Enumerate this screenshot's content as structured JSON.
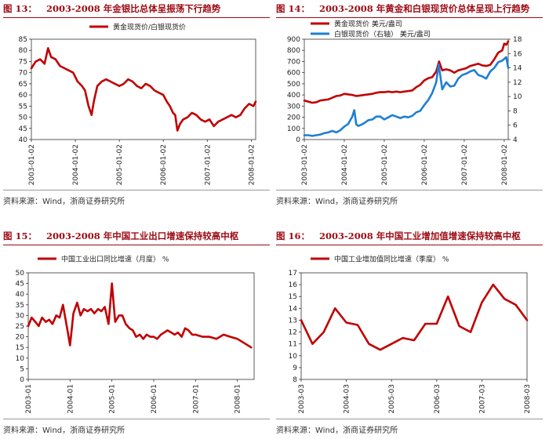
{
  "colors": {
    "red": "#c00000",
    "blue": "#1f7fd4",
    "title": "#9c0a13"
  },
  "source_text": "资料来源：Wind，浙商证券研究所",
  "panels": [
    {
      "num": "图 13：",
      "title": "2003-2008 年金银比总体呈振荡下行趋势"
    },
    {
      "num": "图 14：",
      "title": "2003-2008 年黄金和白银现货价总体呈现上行趋势"
    },
    {
      "num": "图 15：",
      "title": "2003-2008 年中国工业出口增速保持较高中枢"
    },
    {
      "num": "图 16：",
      "title": "2003-2008 年中国工业增加值增速保持较高中枢"
    }
  ],
  "chart_data": [
    {
      "type": "line",
      "title": "",
      "x_ticks": [
        "2003-01-02",
        "2004-01-02",
        "2005-01-02",
        "2006-01-02",
        "2007-01-02",
        "2008-01-02"
      ],
      "ylim": [
        40,
        85
      ],
      "y_ticks": [
        40,
        45,
        50,
        55,
        60,
        65,
        70,
        75,
        80,
        85
      ],
      "grid": false,
      "legend_position": "top",
      "series": [
        {
          "name": "黄金现货价/白银现货价",
          "color": "#c00000",
          "x": [
            2003.0,
            2003.1,
            2003.2,
            2003.3,
            2003.38,
            2003.45,
            2003.55,
            2003.65,
            2003.75,
            2003.85,
            2003.95,
            2004.05,
            2004.15,
            2004.22,
            2004.3,
            2004.37,
            2004.42,
            2004.5,
            2004.6,
            2004.7,
            2004.8,
            2004.9,
            2005.0,
            2005.1,
            2005.2,
            2005.3,
            2005.4,
            2005.5,
            2005.6,
            2005.7,
            2005.8,
            2005.9,
            2006.0,
            2006.08,
            2006.15,
            2006.22,
            2006.27,
            2006.32,
            2006.38,
            2006.45,
            2006.55,
            2006.65,
            2006.75,
            2006.85,
            2006.95,
            2007.05,
            2007.15,
            2007.25,
            2007.35,
            2007.45,
            2007.55,
            2007.65,
            2007.75,
            2007.85,
            2007.95,
            2008.05,
            2008.1
          ],
          "values": [
            72,
            75,
            76,
            74,
            81,
            77,
            76,
            73,
            72,
            71,
            70,
            66,
            64,
            62,
            55,
            51,
            57,
            64,
            66,
            67,
            66,
            65,
            64,
            65,
            67,
            66,
            64,
            63,
            65,
            64,
            62,
            61,
            60,
            57,
            55,
            52,
            51,
            44,
            47,
            49,
            50,
            52,
            51,
            49,
            48,
            49,
            46,
            48,
            49,
            50,
            51,
            50,
            51,
            54,
            56,
            55,
            57
          ]
        }
      ]
    },
    {
      "type": "line",
      "title": "",
      "x_ticks": [
        "2003-01-02",
        "2004-01-02",
        "2005-01-02",
        "2006-01-02",
        "2007-01-02",
        "2008-01-02"
      ],
      "ylim": [
        0,
        900
      ],
      "y_ticks": [
        0,
        100,
        200,
        300,
        400,
        500,
        600,
        700,
        800,
        900
      ],
      "ylim_right": [
        4,
        18
      ],
      "y_ticks_right": [
        4,
        6,
        8,
        10,
        12,
        14,
        16,
        18
      ],
      "grid": false,
      "legend_position": "top-left",
      "series": [
        {
          "name": "黄金现货价",
          "unit": "美元/盎司",
          "color": "#c00000",
          "axis": "left",
          "x": [
            2003.0,
            2003.1,
            2003.2,
            2003.3,
            2003.4,
            2003.5,
            2003.6,
            2003.7,
            2003.8,
            2003.9,
            2004.0,
            2004.1,
            2004.2,
            2004.3,
            2004.4,
            2004.5,
            2004.6,
            2004.7,
            2004.8,
            2004.9,
            2005.0,
            2005.1,
            2005.2,
            2005.3,
            2005.4,
            2005.5,
            2005.6,
            2005.7,
            2005.8,
            2005.9,
            2006.0,
            2006.1,
            2006.2,
            2006.3,
            2006.37,
            2006.45,
            2006.55,
            2006.65,
            2006.75,
            2006.85,
            2006.95,
            2007.05,
            2007.15,
            2007.25,
            2007.35,
            2007.45,
            2007.55,
            2007.65,
            2007.75,
            2007.85,
            2007.95,
            2008.0,
            2008.05,
            2008.1
          ],
          "values": [
            350,
            340,
            330,
            335,
            350,
            355,
            360,
            375,
            390,
            395,
            410,
            405,
            400,
            390,
            395,
            400,
            405,
            410,
            420,
            425,
            425,
            430,
            425,
            430,
            425,
            430,
            435,
            440,
            470,
            490,
            530,
            550,
            560,
            610,
            700,
            620,
            630,
            620,
            600,
            620,
            630,
            640,
            660,
            670,
            680,
            665,
            660,
            670,
            720,
            780,
            800,
            860,
            850,
            880
          ]
        },
        {
          "name": "白银现货价（右轴）",
          "unit": "美元/盎司",
          "color": "#1f7fd4",
          "axis": "right",
          "x": [
            2003.0,
            2003.1,
            2003.2,
            2003.3,
            2003.4,
            2003.5,
            2003.6,
            2003.7,
            2003.8,
            2003.9,
            2004.0,
            2004.1,
            2004.2,
            2004.25,
            2004.3,
            2004.35,
            2004.4,
            2004.5,
            2004.6,
            2004.7,
            2004.8,
            2004.9,
            2005.0,
            2005.1,
            2005.2,
            2005.3,
            2005.4,
            2005.5,
            2005.6,
            2005.7,
            2005.8,
            2005.9,
            2006.0,
            2006.1,
            2006.2,
            2006.3,
            2006.36,
            2006.45,
            2006.55,
            2006.65,
            2006.75,
            2006.85,
            2006.95,
            2007.05,
            2007.15,
            2007.25,
            2007.35,
            2007.45,
            2007.55,
            2007.65,
            2007.75,
            2007.85,
            2007.95,
            2008.05,
            2008.1
          ],
          "values": [
            4.6,
            4.6,
            4.5,
            4.6,
            4.7,
            4.9,
            5.0,
            5.2,
            5.0,
            5.3,
            5.8,
            6.2,
            7.2,
            8.1,
            6.1,
            5.9,
            6.0,
            6.3,
            6.7,
            6.8,
            7.2,
            7.2,
            6.8,
            7.1,
            7.4,
            7.2,
            7.0,
            7.2,
            7.1,
            7.3,
            7.8,
            8.0,
            8.8,
            9.5,
            10.5,
            12.0,
            14.5,
            11.0,
            12.0,
            11.4,
            11.5,
            12.5,
            13.0,
            13.2,
            13.5,
            13.7,
            13.0,
            12.8,
            12.5,
            13.5,
            14.0,
            14.8,
            15.0,
            15.5,
            14.0
          ]
        }
      ]
    },
    {
      "type": "line",
      "title": "",
      "x_ticks": [
        "2003-01",
        "2004-01",
        "2005-01",
        "2006-01",
        "2007-01",
        "2008-01"
      ],
      "ylim": [
        0,
        50
      ],
      "y_ticks": [
        0,
        5,
        10,
        15,
        20,
        25,
        30,
        35,
        40,
        45,
        50
      ],
      "grid": false,
      "legend_position": "top-left",
      "series": [
        {
          "name": "中国工业出口同比增速（月度）",
          "unit": "%",
          "color": "#c00000",
          "x": [
            2003.0,
            2003.08,
            2003.17,
            2003.25,
            2003.33,
            2003.42,
            2003.5,
            2003.58,
            2003.67,
            2003.75,
            2003.83,
            2003.92,
            2004.0,
            2004.08,
            2004.17,
            2004.25,
            2004.33,
            2004.42,
            2004.5,
            2004.58,
            2004.67,
            2004.75,
            2004.83,
            2004.92,
            2005.0,
            2005.08,
            2005.17,
            2005.25,
            2005.33,
            2005.42,
            2005.5,
            2005.58,
            2005.67,
            2005.75,
            2005.83,
            2005.92,
            2006.0,
            2006.08,
            2006.17,
            2006.25,
            2006.33,
            2006.42,
            2006.5,
            2006.58,
            2006.67,
            2006.75,
            2006.83,
            2006.92,
            2007.0,
            2007.17,
            2007.33,
            2007.5,
            2007.67,
            2007.83,
            2008.0,
            2008.17,
            2008.33
          ],
          "values": [
            25,
            29,
            27,
            25,
            29,
            27,
            28,
            26,
            30,
            29,
            35,
            25,
            16,
            31,
            36,
            30,
            33,
            32,
            33,
            31,
            33,
            32,
            34,
            26,
            45,
            27,
            30,
            30,
            26,
            24,
            23,
            20,
            21,
            19,
            21,
            20,
            20,
            19,
            21,
            22,
            23,
            22,
            21,
            22,
            20,
            24,
            23,
            21,
            21,
            20,
            20,
            19,
            21,
            20,
            19,
            17,
            15
          ]
        }
      ]
    },
    {
      "type": "line",
      "title": "",
      "x_ticks": [
        "2003-03",
        "2004-03",
        "2005-03",
        "2006-03",
        "2007-03",
        "2008-03"
      ],
      "ylim": [
        8,
        17
      ],
      "y_ticks": [
        8,
        9,
        10,
        11,
        12,
        13,
        14,
        15,
        16,
        17
      ],
      "grid": false,
      "legend_position": "top-left",
      "series": [
        {
          "name": "中国工业增加值同比增速（季度）",
          "unit": "%",
          "color": "#c00000",
          "x": [
            2003.0,
            2003.25,
            2003.5,
            2003.75,
            2004.0,
            2004.25,
            2004.5,
            2004.75,
            2005.0,
            2005.25,
            2005.5,
            2005.75,
            2006.0,
            2006.25,
            2006.5,
            2006.75,
            2007.0,
            2007.25,
            2007.5,
            2007.75,
            2008.0
          ],
          "values": [
            13,
            11,
            12,
            14,
            12.8,
            12.6,
            11,
            10.5,
            11,
            11.5,
            11.3,
            12.7,
            12.7,
            15,
            12.5,
            12,
            14.5,
            16,
            14.8,
            14.3,
            13
          ]
        }
      ]
    }
  ]
}
